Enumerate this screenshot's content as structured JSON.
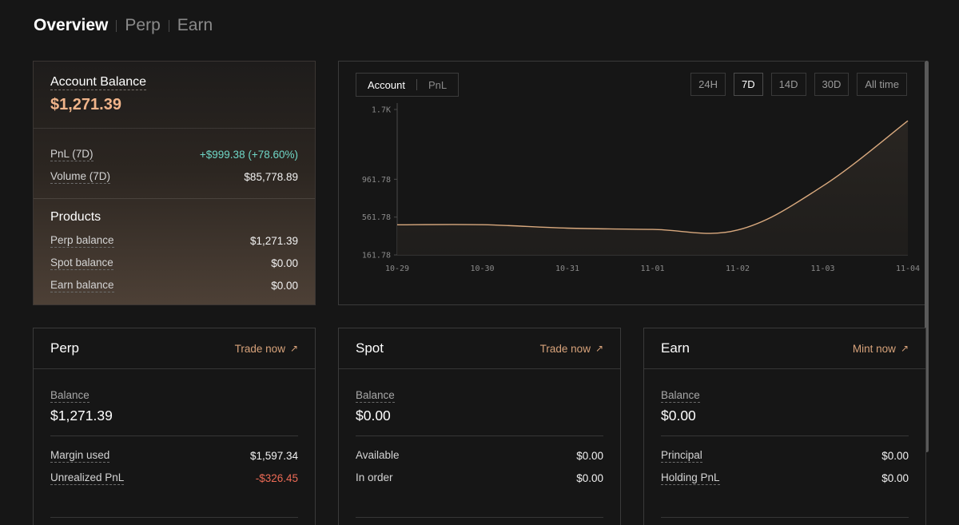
{
  "nav": {
    "tabs": [
      "Overview",
      "Perp",
      "Earn"
    ],
    "active": "Overview"
  },
  "account": {
    "title": "Account Balance",
    "value": "$1,271.39",
    "pnl_label": "PnL (7D)",
    "pnl_value": "+$999.38 (+78.60%)",
    "volume_label": "Volume (7D)",
    "volume_value": "$85,778.89",
    "products_title": "Products",
    "products": [
      {
        "label": "Perp balance",
        "value": "$1,271.39"
      },
      {
        "label": "Spot balance",
        "value": "$0.00"
      },
      {
        "label": "Earn balance",
        "value": "$0.00"
      }
    ]
  },
  "chart_panel": {
    "tabs": [
      "Account",
      "PnL"
    ],
    "active_tab": "Account",
    "ranges": [
      "24H",
      "7D",
      "14D",
      "30D",
      "All time"
    ],
    "active_range": "7D"
  },
  "chart_data": {
    "type": "area",
    "x": [
      "10-29",
      "10-30",
      "10-31",
      "11-01",
      "11-02",
      "11-03",
      "11-04"
    ],
    "values": [
      480,
      481,
      445,
      432,
      425,
      890,
      1580
    ],
    "y_ticks": [
      "1.7K",
      "961.78",
      "561.78",
      "161.78"
    ],
    "ylim": [
      161.78,
      1700
    ],
    "line_color": "#d9a97e",
    "title": "",
    "xlabel": "",
    "ylabel": ""
  },
  "cards": [
    {
      "title": "Perp",
      "link": "Trade now",
      "balance_label": "Balance",
      "balance_value": "$1,271.39",
      "rows": [
        {
          "label": "Margin used",
          "value": "$1,597.34",
          "tone": "normal",
          "dashed": true
        },
        {
          "label": "Unrealized PnL",
          "value": "-$326.45",
          "tone": "neg",
          "dashed": true
        }
      ]
    },
    {
      "title": "Spot",
      "link": "Trade now",
      "balance_label": "Balance",
      "balance_value": "$0.00",
      "rows": [
        {
          "label": "Available",
          "value": "$0.00",
          "tone": "normal",
          "dashed": false
        },
        {
          "label": "In order",
          "value": "$0.00",
          "tone": "normal",
          "dashed": false
        }
      ]
    },
    {
      "title": "Earn",
      "link": "Mint now",
      "balance_label": "Balance",
      "balance_value": "$0.00",
      "rows": [
        {
          "label": "Principal",
          "value": "$0.00",
          "tone": "normal",
          "dashed": true
        },
        {
          "label": "Holding PnL",
          "value": "$0.00",
          "tone": "normal",
          "dashed": true
        }
      ]
    }
  ]
}
